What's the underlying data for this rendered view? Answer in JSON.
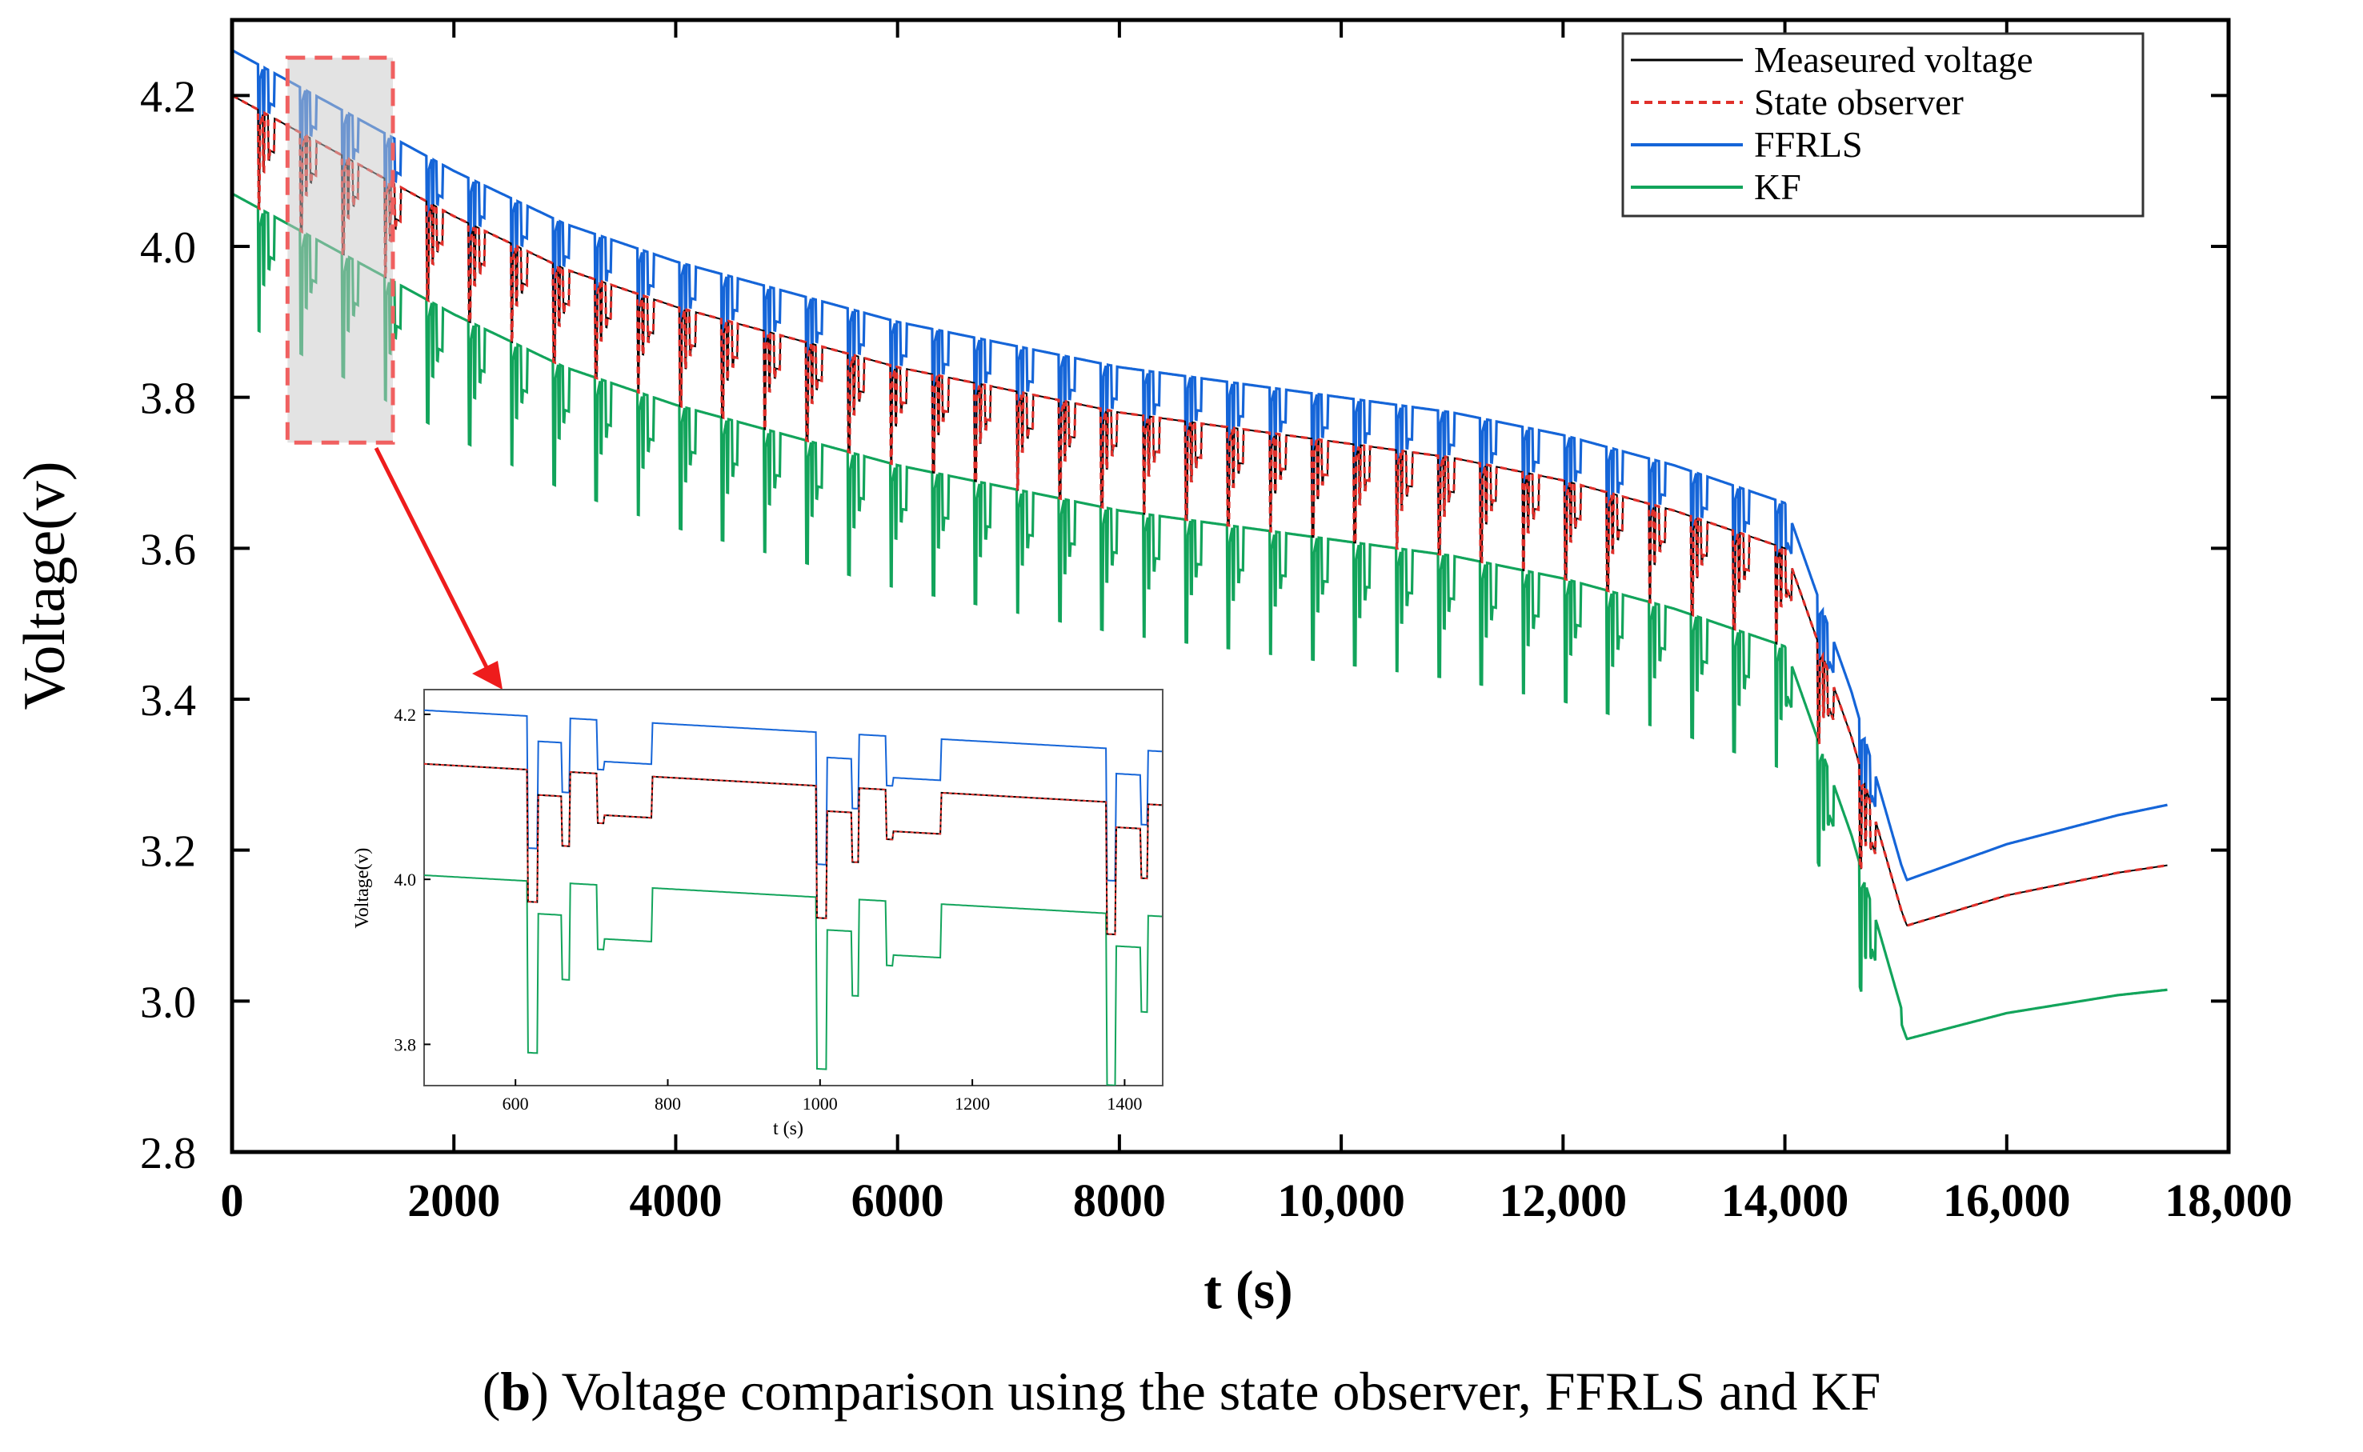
{
  "chart_data": {
    "type": "line",
    "xlabel": "t (s)",
    "ylabel": "Voltage(v)",
    "xlim": [
      0,
      18000
    ],
    "ylim": [
      2.8,
      4.3
    ],
    "x_ticks": [
      0,
      2000,
      4000,
      6000,
      8000,
      10000,
      12000,
      14000,
      16000,
      18000
    ],
    "x_tick_labels": [
      "0",
      "2000",
      "4000",
      "6000",
      "8000",
      "10,000",
      "12,000",
      "14,000",
      "16,000",
      "18,000"
    ],
    "y_ticks": [
      2.8,
      3.0,
      3.2,
      3.4,
      3.6,
      3.8,
      4.0,
      4.2
    ],
    "y_tick_labels": [
      "2.8",
      "3.0",
      "3.2",
      "3.4",
      "3.6",
      "3.8",
      "4.0",
      "4.2"
    ],
    "legend_position": "top-right",
    "series": [
      {
        "name": "Measeured voltage",
        "color": "#000000",
        "style": "solid",
        "offset": 0.0
      },
      {
        "name": "State observer",
        "color": "#e0302b",
        "style": "dashed",
        "offset": 0.0
      },
      {
        "name": "FFRLS",
        "color": "#1565d8",
        "style": "solid",
        "offset": 0.06
      },
      {
        "name": "KF",
        "color": "#12a45b",
        "style": "solid",
        "offset": -0.13
      }
    ],
    "base_profile": {
      "t": [
        0,
        1000,
        2000,
        3000,
        4000,
        5000,
        6000,
        7000,
        8000,
        9000,
        10000,
        11000,
        12000,
        13000,
        14000,
        14600,
        15050,
        15100,
        16000,
        17000,
        17450
      ],
      "v": [
        4.2,
        4.12,
        4.04,
        3.97,
        3.92,
        3.88,
        3.84,
        3.81,
        3.78,
        3.76,
        3.74,
        3.72,
        3.69,
        3.65,
        3.6,
        3.35,
        3.12,
        3.1,
        3.14,
        3.17,
        3.18
      ]
    },
    "pulse_period_s": 380,
    "pulse_depth_v": 0.13,
    "zoom_box_x": [
      500,
      1450
    ],
    "zoom_box_y": [
      3.74,
      4.25
    ],
    "inset": {
      "xlabel": "t (s)",
      "ylabel": "Voltage(v)",
      "xlim": [
        480,
        1450
      ],
      "ylim": [
        3.75,
        4.23
      ],
      "x_ticks": [
        600,
        800,
        1000,
        1200,
        1400
      ],
      "x_tick_labels": [
        "600",
        "800",
        "1000",
        "1200",
        "1400"
      ],
      "y_ticks": [
        3.8,
        4.0,
        4.2
      ],
      "y_tick_labels": [
        "3.8",
        "4.0",
        "4.2"
      ]
    }
  },
  "caption": {
    "bold": "b",
    "text": " Voltage comparison using the state observer, FFRLS and KF"
  }
}
